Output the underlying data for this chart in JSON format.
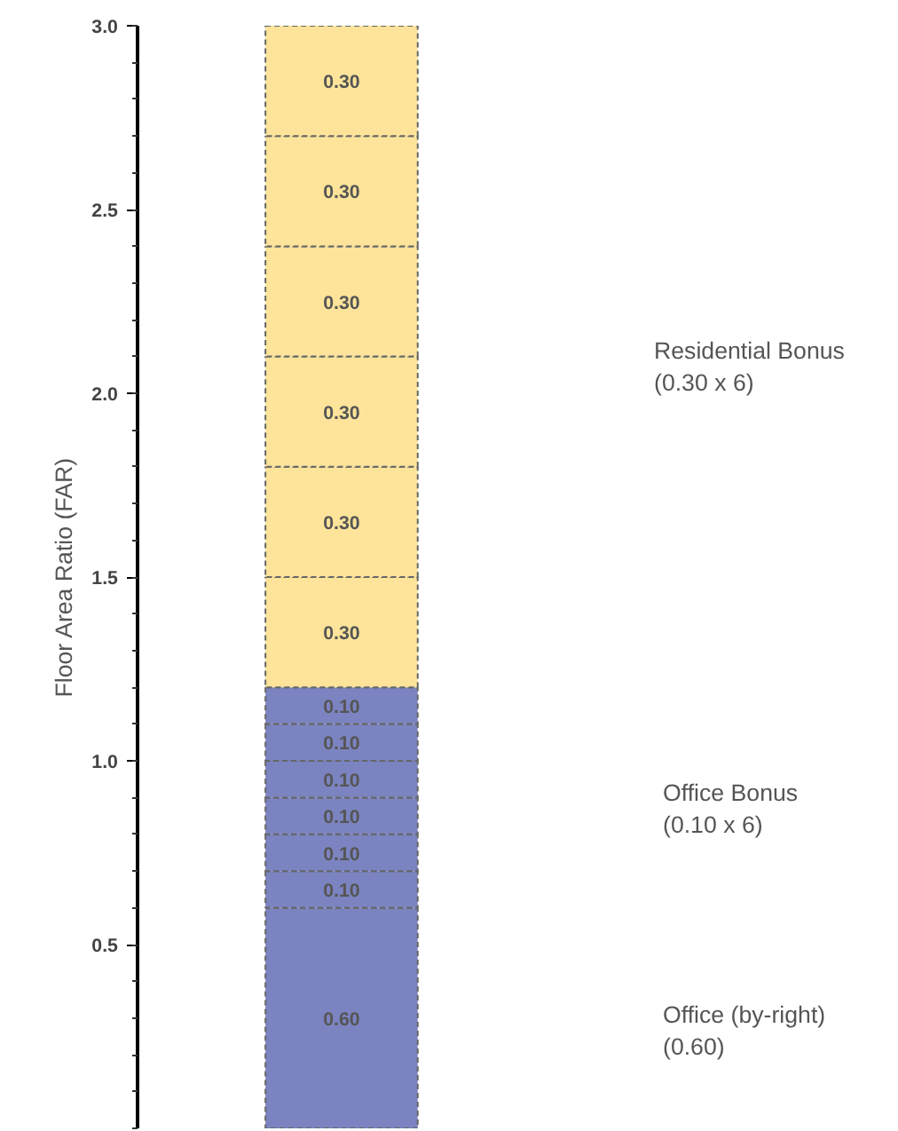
{
  "chart_data": {
    "type": "bar",
    "stacked": true,
    "ylabel": "Floor Area Ratio (FAR)",
    "categories": [
      null
    ],
    "ylim": [
      0,
      3.0
    ],
    "yticks": [
      {
        "value": 0.5,
        "label": "0.5"
      },
      {
        "value": 1.0,
        "label": "1.0"
      },
      {
        "value": 1.5,
        "label": "1.5"
      },
      {
        "value": 2.0,
        "label": "2.0"
      },
      {
        "value": 2.5,
        "label": "2.5"
      },
      {
        "value": 3.0,
        "label": "3.0"
      }
    ],
    "series": [
      {
        "color": "#7b84c0",
        "values": [
          0.6
        ],
        "value_labels": [
          "0.60"
        ]
      },
      {
        "color": "#7b84c0",
        "values": [
          0.1
        ],
        "value_labels": [
          "0.10"
        ]
      },
      {
        "color": "#7b84c0",
        "values": [
          0.1
        ],
        "value_labels": [
          "0.10"
        ]
      },
      {
        "color": "#7b84c0",
        "values": [
          0.1
        ],
        "value_labels": [
          "0.10"
        ]
      },
      {
        "color": "#7b84c0",
        "values": [
          0.1
        ],
        "value_labels": [
          "0.10"
        ]
      },
      {
        "color": "#7b84c0",
        "values": [
          0.1
        ],
        "value_labels": [
          "0.10"
        ]
      },
      {
        "color": "#7b84c0",
        "values": [
          0.1
        ],
        "value_labels": [
          "0.10"
        ]
      },
      {
        "color": "#fde49a",
        "values": [
          0.3
        ],
        "value_labels": [
          "0.30"
        ]
      },
      {
        "color": "#fde49a",
        "values": [
          0.3
        ],
        "value_labels": [
          "0.30"
        ]
      },
      {
        "color": "#fde49a",
        "values": [
          0.3
        ],
        "value_labels": [
          "0.30"
        ]
      },
      {
        "color": "#fde49a",
        "values": [
          0.3
        ],
        "value_labels": [
          "0.30"
        ]
      },
      {
        "color": "#fde49a",
        "values": [
          0.3
        ],
        "value_labels": [
          "0.30"
        ]
      },
      {
        "color": "#fde49a",
        "values": [
          0.3
        ],
        "value_labels": [
          "0.30"
        ]
      }
    ],
    "annotations": [
      "Residential Bonus\n(0.30 x 6)",
      "Office Bonus\n(0.10 x 6)",
      "Office (by-right)\n(0.60)"
    ],
    "grid": false,
    "tick_labels": "y"
  }
}
